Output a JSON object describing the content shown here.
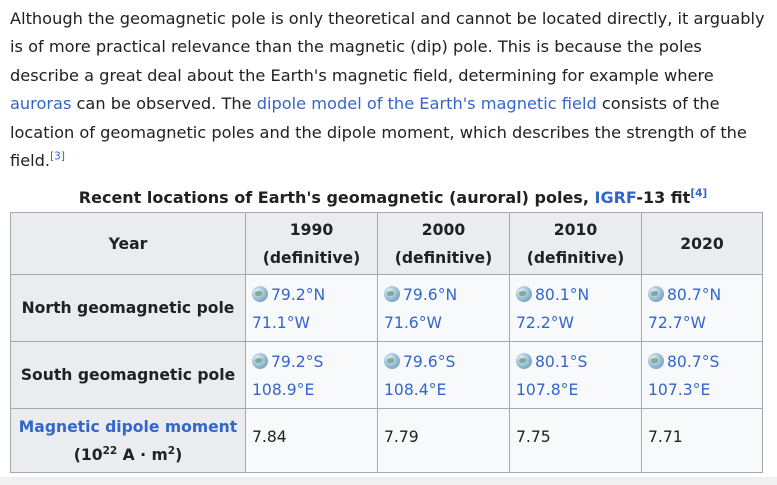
{
  "paragraph": {
    "part1": "Although the geomagnetic pole is only theoretical and cannot be located directly, it arguably is of more practical relevance than the magnetic (dip) pole. This is because the poles describe a great deal about the Earth's magnetic field, determining for example where ",
    "link_auroras": "auroras",
    "part2": " can be observed. The ",
    "link_dipole_model": "dipole model of the Earth's magnetic field",
    "part3": " consists of the location of geomagnetic poles and the dipole moment, which describes the strength of the field.",
    "ref3": "[3]"
  },
  "caption": {
    "pre": "Recent locations of Earth's geomagnetic (auroral) poles, ",
    "link_igrf": "IGRF",
    "post": "-13 fit",
    "ref4": "[4]"
  },
  "table": {
    "header_year": "Year",
    "columns": [
      {
        "year": "1990",
        "note": "(definitive)"
      },
      {
        "year": "2000",
        "note": "(definitive)"
      },
      {
        "year": "2010",
        "note": "(definitive)"
      },
      {
        "year": "2020",
        "note": ""
      }
    ],
    "rows": {
      "north": {
        "label": "North geomagnetic pole",
        "cells": [
          {
            "lat": "79.2°N",
            "lon": "71.1°W"
          },
          {
            "lat": "79.6°N",
            "lon": "71.6°W"
          },
          {
            "lat": "80.1°N",
            "lon": "72.2°W"
          },
          {
            "lat": "80.7°N",
            "lon": "72.7°W"
          }
        ]
      },
      "south": {
        "label": "South geomagnetic pole",
        "cells": [
          {
            "lat": "79.2°S",
            "lon": "108.9°E"
          },
          {
            "lat": "79.6°S",
            "lon": "108.4°E"
          },
          {
            "lat": "80.1°S",
            "lon": "107.8°E"
          },
          {
            "lat": "80.7°S",
            "lon": "107.3°E"
          }
        ]
      },
      "dipole": {
        "label_link": "Magnetic dipole moment",
        "unit_pre": "(10",
        "unit_exp": "22",
        "unit_mid": " A · m",
        "unit_sq": "2",
        "unit_post": ")",
        "values": [
          "7.84",
          "7.79",
          "7.75",
          "7.71"
        ]
      }
    }
  },
  "icons": {
    "globe": "globe-icon"
  }
}
